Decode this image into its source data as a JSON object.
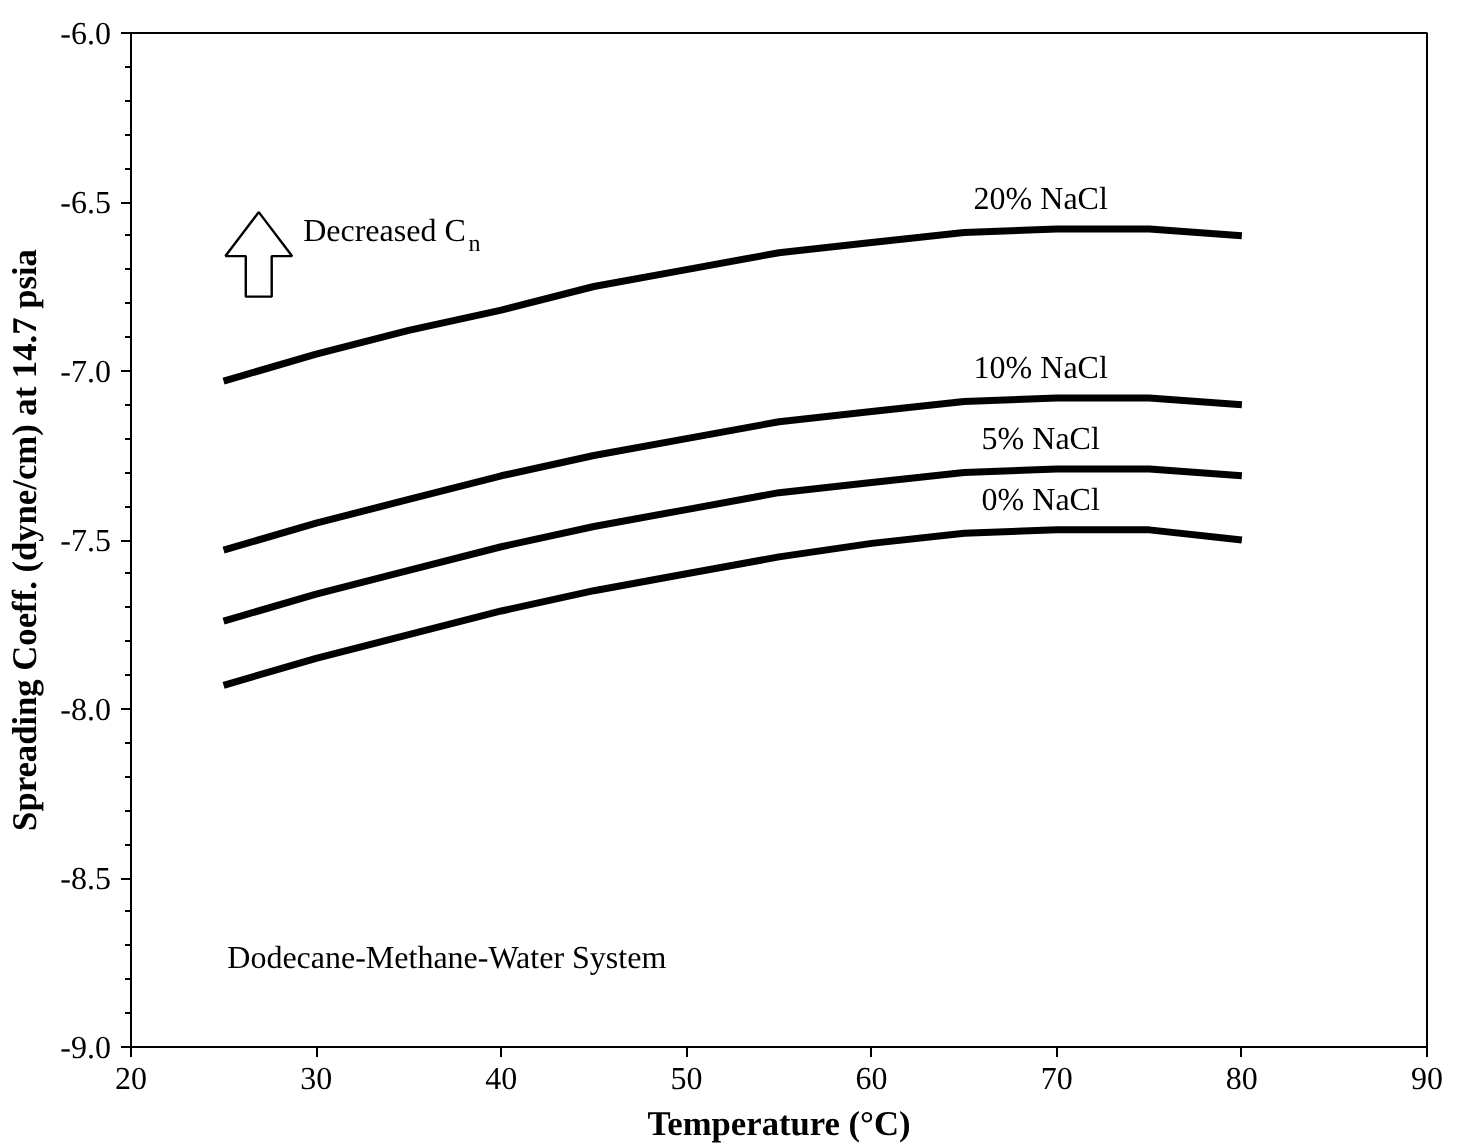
{
  "chart_data": {
    "type": "line",
    "xlabel": "Temperature (°C)",
    "ylabel": "Spreading Coeff. (dyne/cm) at 14.7 psia",
    "x": [
      25,
      30,
      35,
      40,
      45,
      50,
      55,
      60,
      65,
      70,
      75,
      80
    ],
    "series": [
      {
        "name": "20% NaCl",
        "color": "#000000",
        "values": [
          -7.03,
          -6.95,
          -6.88,
          -6.82,
          -6.75,
          -6.7,
          -6.65,
          -6.62,
          -6.59,
          -6.58,
          -6.58,
          -6.6
        ]
      },
      {
        "name": "10% NaCl",
        "color": "#000000",
        "values": [
          -7.53,
          -7.45,
          -7.38,
          -7.31,
          -7.25,
          -7.2,
          -7.15,
          -7.12,
          -7.09,
          -7.08,
          -7.08,
          -7.1
        ]
      },
      {
        "name": "5% NaCl",
        "color": "#000000",
        "values": [
          -7.74,
          -7.66,
          -7.59,
          -7.52,
          -7.46,
          -7.41,
          -7.36,
          -7.33,
          -7.3,
          -7.29,
          -7.29,
          -7.31
        ]
      },
      {
        "name": "0% NaCl",
        "color": "#000000",
        "values": [
          -7.93,
          -7.85,
          -7.78,
          -7.71,
          -7.65,
          -7.6,
          -7.55,
          -7.51,
          -7.48,
          -7.47,
          -7.47,
          -7.5
        ]
      }
    ],
    "xlim": [
      20,
      90
    ],
    "xticks": [
      20,
      30,
      40,
      50,
      60,
      70,
      80,
      90
    ],
    "ylim": [
      -9.0,
      -6.0
    ],
    "yticks": [
      {
        "value": -9,
        "label": "-9.0"
      },
      {
        "value": -8.5,
        "label": "-8.5"
      },
      {
        "value": -8,
        "label": "-8.0"
      },
      {
        "value": -7.5,
        "label": "-7.5"
      },
      {
        "value": -7,
        "label": "-7.0"
      },
      {
        "value": -6.5,
        "label": "-6.5"
      },
      {
        "value": -6,
        "label": "-6.0"
      }
    ],
    "annotations": [
      "Decreased C$_{n}$",
      "Dodecane-Methane-Water System"
    ],
    "grid": false,
    "marker": "none",
    "line_style": "solid"
  }
}
